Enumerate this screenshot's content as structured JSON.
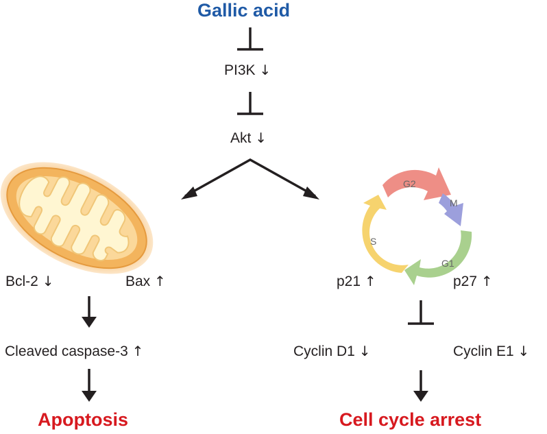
{
  "top": {
    "compound": "Gallic acid"
  },
  "pathway": [
    {
      "name": "PI3K",
      "change": "↓"
    },
    {
      "name": "Akt",
      "change": "↓"
    }
  ],
  "left_branch": {
    "markers": [
      {
        "name": "Bcl-2",
        "change": "↓"
      },
      {
        "name": "Bax",
        "change": "↑"
      }
    ],
    "downstream": {
      "name": "Cleaved caspase-3",
      "change": "↑"
    },
    "outcome": "Apoptosis"
  },
  "right_branch": {
    "cell_cycle_phases": [
      "G2",
      "M",
      "G1",
      "S"
    ],
    "markers": [
      {
        "name": "p21",
        "change": "↑"
      },
      {
        "name": "p27",
        "change": "↑"
      }
    ],
    "inhibited": [
      {
        "name": "Cyclin D1",
        "change": "↓"
      },
      {
        "name": "Cyclin E1",
        "change": "↓"
      }
    ],
    "outcome": "Cell cycle arrest"
  },
  "colors": {
    "compound": "#1f5aa6",
    "outcome": "#d7191f",
    "text": "#231f20",
    "phase_g2": "#ee8e86",
    "phase_m": "#9c9fdc",
    "phase_g1": "#a9d08e",
    "phase_s": "#f6d36e",
    "mito_outer": "#f3b45d",
    "mito_inner": "#fff3c4"
  },
  "icons": [
    "mitochondrion-icon",
    "cell-cycle-icon"
  ]
}
